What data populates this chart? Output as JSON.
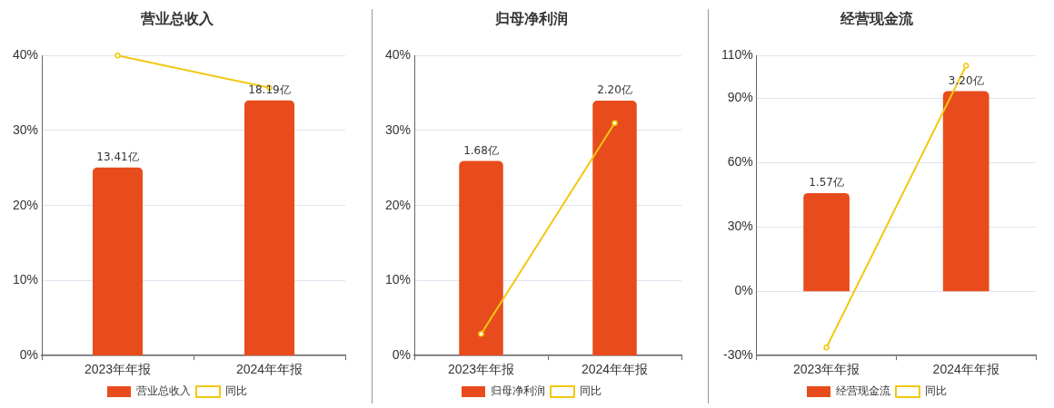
{
  "chart_data": [
    {
      "type": "bar",
      "title": "营业总收入",
      "categories": [
        "2023年年报",
        "2024年年报"
      ],
      "series": [
        {
          "name": "营业总收入",
          "color": "#e84c1c",
          "values": [
            13.41,
            18.19
          ],
          "axis": "y2",
          "value_labels": [
            "13.41亿",
            "18.19亿"
          ]
        },
        {
          "name": "同比",
          "type": "line",
          "color": "#f2c811",
          "values": [
            40,
            35.7
          ]
        }
      ],
      "ylim": [
        0,
        40
      ],
      "yticks": [
        {
          "value": 0,
          "label": "0%"
        },
        {
          "value": 10,
          "label": "10%"
        },
        {
          "value": 20,
          "label": "20%"
        },
        {
          "value": 30,
          "label": "30%"
        },
        {
          "value": 40,
          "label": "40%"
        }
      ],
      "y2lim": [
        0,
        21.4
      ],
      "tick_labels": "xy",
      "grid": "y",
      "legend": "bottom",
      "marker": "circle",
      "line_style": "solid"
    },
    {
      "type": "bar",
      "title": "归母净利润",
      "categories": [
        "2023年年报",
        "2024年年报"
      ],
      "series": [
        {
          "name": "归母净利润",
          "color": "#e84c1c",
          "values": [
            1.68,
            2.2
          ],
          "axis": "y2",
          "value_labels": [
            "1.68亿",
            "2.20亿"
          ]
        },
        {
          "name": "同比",
          "type": "line",
          "color": "#f2c811",
          "values": [
            2.9,
            31
          ]
        }
      ],
      "ylim": [
        0,
        40
      ],
      "yticks": [
        {
          "value": 0,
          "label": "0%"
        },
        {
          "value": 10,
          "label": "10%"
        },
        {
          "value": 20,
          "label": "20%"
        },
        {
          "value": 30,
          "label": "30%"
        },
        {
          "value": 40,
          "label": "40%"
        }
      ],
      "y2lim": [
        0,
        2.59
      ],
      "tick_labels": "xy",
      "grid": "y",
      "legend": "bottom",
      "marker": "circle",
      "line_style": "solid"
    },
    {
      "type": "bar",
      "title": "经营现金流",
      "categories": [
        "2023年年报",
        "2024年年报"
      ],
      "series": [
        {
          "name": "经营现金流",
          "color": "#e84c1c",
          "values": [
            1.57,
            3.2
          ],
          "axis": "y2",
          "value_labels": [
            "1.57亿",
            "3.20亿"
          ]
        },
        {
          "name": "同比",
          "type": "line",
          "color": "#f2c811",
          "values": [
            -26.2,
            105.2
          ]
        }
      ],
      "ylim": [
        -30,
        110
      ],
      "yticks": [
        {
          "value": -30,
          "label": "-30%"
        },
        {
          "value": 0,
          "label": "0%"
        },
        {
          "value": 30,
          "label": "30%"
        },
        {
          "value": 60,
          "label": "60%"
        },
        {
          "value": 90,
          "label": "90%"
        },
        {
          "value": 110,
          "label": "110%"
        }
      ],
      "y2lim": [
        -1.03,
        3.77
      ],
      "tick_labels": "xy",
      "grid": "y",
      "legend": "bottom",
      "marker": "circle",
      "line_style": "solid"
    }
  ]
}
